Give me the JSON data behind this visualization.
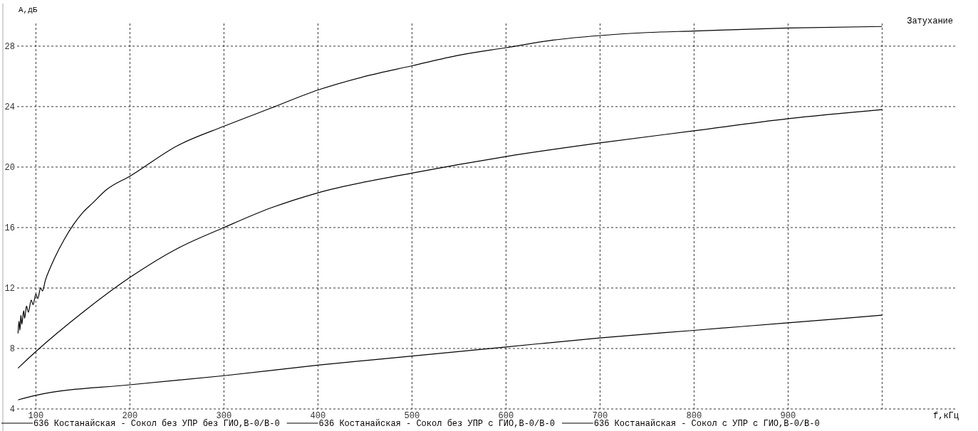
{
  "chart_data": {
    "type": "line",
    "title": "Затухание",
    "xlabel": "f,кГц",
    "ylabel": "А,дБ",
    "xlim": [
      80,
      1080
    ],
    "ylim": [
      4,
      29.5
    ],
    "xticks": [
      100,
      200,
      300,
      400,
      500,
      600,
      700,
      800,
      900,
      {
        "value": 1000,
        "label": null
      }
    ],
    "yticks": [
      4,
      8,
      12,
      16,
      20,
      24,
      28
    ],
    "grid": true,
    "legend": "bottom",
    "line_style": "solid",
    "marker": "none",
    "series": [
      {
        "name": "636 Костанайская - Сокол без УПР без ГИО,В-0/В-0",
        "color": "#000000",
        "x": [
          81,
          82,
          83,
          84,
          85,
          87,
          88,
          90,
          92,
          95,
          97,
          100,
          102,
          105,
          107,
          110,
          115,
          120,
          130,
          140,
          150,
          160,
          175,
          200,
          250,
          300,
          350,
          400,
          450,
          500,
          550,
          600,
          650,
          700,
          750,
          800,
          900,
          1000
        ],
        "values": [
          9.0,
          9.8,
          9.2,
          10.2,
          9.6,
          10.5,
          10.0,
          10.8,
          10.4,
          11.2,
          10.9,
          11.6,
          11.3,
          12.0,
          11.8,
          12.5,
          13.3,
          14.0,
          15.2,
          16.2,
          17.0,
          17.6,
          18.5,
          19.4,
          21.4,
          22.7,
          23.9,
          25.1,
          26.0,
          26.7,
          27.4,
          27.9,
          28.4,
          28.7,
          28.9,
          29.0,
          29.2,
          29.3
        ]
      },
      {
        "name": "636 Костанайская - Сокол без УПР с ГИО,В-0/В-0",
        "color": "#000000",
        "x": [
          81,
          100,
          150,
          200,
          250,
          300,
          350,
          400,
          500,
          600,
          700,
          800,
          900,
          1000
        ],
        "values": [
          6.7,
          7.8,
          10.4,
          12.7,
          14.6,
          16.0,
          17.3,
          18.3,
          19.6,
          20.7,
          21.6,
          22.4,
          23.2,
          23.8
        ]
      },
      {
        "name": "636 Костанайская - Сокол с УПР с ГИО,В-0/В-0",
        "color": "#000000",
        "x": [
          81,
          100,
          200,
          300,
          400,
          500,
          600,
          700,
          800,
          900,
          1000
        ],
        "values": [
          4.6,
          4.9,
          5.6,
          6.2,
          6.9,
          7.5,
          8.1,
          8.7,
          9.2,
          9.7,
          10.2
        ]
      }
    ]
  }
}
